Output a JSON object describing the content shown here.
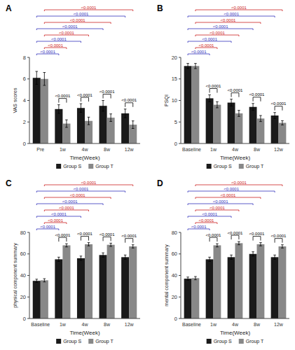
{
  "chart_data": [
    {
      "type": "bar",
      "title": "A",
      "x_label": "Time(Week)",
      "y_label": "VAS scores",
      "categories": [
        "Pre",
        "1w",
        "4w",
        "8w",
        "12w"
      ],
      "series": [
        {
          "name": "Group S",
          "color": "#1a1a1a",
          "values": [
            6.1,
            3.2,
            3.3,
            3.5,
            2.8
          ],
          "errors": [
            0.6,
            0.4,
            0.4,
            0.5,
            0.4
          ]
        },
        {
          "name": "Group T",
          "color": "#888888",
          "values": [
            6.0,
            1.85,
            2.1,
            2.4,
            1.75
          ],
          "errors": [
            0.6,
            0.35,
            0.35,
            0.35,
            0.35
          ]
        }
      ],
      "ylim": [
        0,
        8
      ],
      "yticks": [
        0,
        2,
        4,
        6,
        8
      ],
      "grid": false,
      "legend": "bottom",
      "annotations": [
        {
          "text": "<0.0001",
          "color": "black",
          "series_pair": [
            0,
            1
          ],
          "category_pair": [
            1,
            1
          ]
        },
        {
          "text": "<0.0001",
          "color": "black",
          "series_pair": [
            0,
            1
          ],
          "category_pair": [
            2,
            2
          ]
        },
        {
          "text": "<0.0001",
          "color": "black",
          "series_pair": [
            0,
            1
          ],
          "category_pair": [
            3,
            3
          ]
        },
        {
          "text": "<0.0001",
          "color": "black",
          "series_pair": [
            0,
            1
          ],
          "category_pair": [
            4,
            4
          ]
        },
        {
          "text": "<0.0001",
          "color": "#3333bb",
          "series_pair": [
            0,
            0
          ],
          "category_pair": [
            0,
            1
          ]
        },
        {
          "text": "<0.0001",
          "color": "#cc2222",
          "series_pair": [
            1,
            1
          ],
          "category_pair": [
            0,
            1
          ]
        },
        {
          "text": "<0.0001",
          "color": "#3333bb",
          "series_pair": [
            0,
            0
          ],
          "category_pair": [
            0,
            2
          ]
        },
        {
          "text": "<0.0001",
          "color": "#cc2222",
          "series_pair": [
            1,
            1
          ],
          "category_pair": [
            0,
            2
          ]
        },
        {
          "text": "<0.0001",
          "color": "#3333bb",
          "series_pair": [
            0,
            0
          ],
          "category_pair": [
            0,
            3
          ]
        },
        {
          "text": "<0.0001",
          "color": "#cc2222",
          "series_pair": [
            1,
            1
          ],
          "category_pair": [
            0,
            3
          ]
        },
        {
          "text": "<0.0001",
          "color": "#3333bb",
          "series_pair": [
            0,
            0
          ],
          "category_pair": [
            0,
            4
          ]
        },
        {
          "text": "<0.0001",
          "color": "#cc2222",
          "series_pair": [
            1,
            1
          ],
          "category_pair": [
            0,
            4
          ]
        }
      ]
    },
    {
      "type": "bar",
      "title": "B",
      "x_label": "Time(Week)",
      "y_label": "PSQI",
      "categories": [
        "Baseline",
        "1w",
        "4w",
        "8w",
        "12w"
      ],
      "series": [
        {
          "name": "Group S",
          "color": "#1a1a1a",
          "values": [
            18.0,
            10.5,
            9.5,
            8.5,
            6.5
          ],
          "errors": [
            0.6,
            0.8,
            0.8,
            0.8,
            0.7
          ]
        },
        {
          "name": "Group T",
          "color": "#888888",
          "values": [
            18.0,
            9.0,
            7.0,
            5.8,
            4.8
          ],
          "errors": [
            0.6,
            0.7,
            0.7,
            0.7,
            0.5
          ]
        }
      ],
      "ylim": [
        0,
        20
      ],
      "yticks": [
        0,
        5,
        10,
        15,
        20
      ],
      "grid": false,
      "legend": "bottom",
      "annotations": [
        {
          "text": "<0.0001",
          "color": "black",
          "series_pair": [
            0,
            1
          ],
          "category_pair": [
            1,
            1
          ]
        },
        {
          "text": "<0.0001",
          "color": "black",
          "series_pair": [
            0,
            1
          ],
          "category_pair": [
            2,
            2
          ]
        },
        {
          "text": "<0.0001",
          "color": "black",
          "series_pair": [
            0,
            1
          ],
          "category_pair": [
            3,
            3
          ]
        },
        {
          "text": "<0.0001",
          "color": "black",
          "series_pair": [
            0,
            1
          ],
          "category_pair": [
            4,
            4
          ]
        },
        {
          "text": "<0.0001",
          "color": "#3333bb",
          "series_pair": [
            0,
            0
          ],
          "category_pair": [
            0,
            1
          ]
        },
        {
          "text": "<0.0001",
          "color": "#cc2222",
          "series_pair": [
            1,
            1
          ],
          "category_pair": [
            0,
            1
          ]
        },
        {
          "text": "<0.0001",
          "color": "#3333bb",
          "series_pair": [
            0,
            0
          ],
          "category_pair": [
            0,
            2
          ]
        },
        {
          "text": "<0.0001",
          "color": "#cc2222",
          "series_pair": [
            1,
            1
          ],
          "category_pair": [
            0,
            2
          ]
        },
        {
          "text": "<0.0001",
          "color": "#3333bb",
          "series_pair": [
            0,
            0
          ],
          "category_pair": [
            0,
            3
          ]
        },
        {
          "text": "<0.0001",
          "color": "#cc2222",
          "series_pair": [
            1,
            1
          ],
          "category_pair": [
            0,
            3
          ]
        },
        {
          "text": "<0.0001",
          "color": "#3333bb",
          "series_pair": [
            0,
            0
          ],
          "category_pair": [
            0,
            4
          ]
        },
        {
          "text": "<0.0001",
          "color": "#cc2222",
          "series_pair": [
            1,
            1
          ],
          "category_pair": [
            0,
            4
          ]
        }
      ]
    },
    {
      "type": "bar",
      "title": "C",
      "x_label": "Time(Week)",
      "y_label": "physical component summary",
      "categories": [
        "Baseline",
        "1w",
        "4w",
        "8w",
        "12w"
      ],
      "series": [
        {
          "name": "Group S",
          "color": "#1a1a1a",
          "values": [
            35.0,
            55.0,
            56.0,
            59.0,
            57.0
          ],
          "errors": [
            1.5,
            2.0,
            2.0,
            2.0,
            2.0
          ]
        },
        {
          "name": "Group T",
          "color": "#888888",
          "values": [
            35.5,
            68.0,
            69.0,
            68.5,
            67.0
          ],
          "errors": [
            1.5,
            1.5,
            1.5,
            1.5,
            1.5
          ]
        }
      ],
      "ylim": [
        0,
        80
      ],
      "yticks": [
        0,
        20,
        40,
        60,
        80
      ],
      "grid": false,
      "legend": "bottom",
      "annotations": [
        {
          "text": "<0.0001",
          "color": "black",
          "series_pair": [
            0,
            1
          ],
          "category_pair": [
            1,
            1
          ]
        },
        {
          "text": "<0.0001",
          "color": "black",
          "series_pair": [
            0,
            1
          ],
          "category_pair": [
            2,
            2
          ]
        },
        {
          "text": "<0.0001",
          "color": "black",
          "series_pair": [
            0,
            1
          ],
          "category_pair": [
            3,
            3
          ]
        },
        {
          "text": "<0.0001",
          "color": "black",
          "series_pair": [
            0,
            1
          ],
          "category_pair": [
            4,
            4
          ]
        },
        {
          "text": "<0.0001",
          "color": "#3333bb",
          "series_pair": [
            0,
            0
          ],
          "category_pair": [
            0,
            1
          ]
        },
        {
          "text": "<0.0001",
          "color": "#cc2222",
          "series_pair": [
            1,
            1
          ],
          "category_pair": [
            0,
            1
          ]
        },
        {
          "text": "<0.0001",
          "color": "#3333bb",
          "series_pair": [
            0,
            0
          ],
          "category_pair": [
            0,
            2
          ]
        },
        {
          "text": "<0.0001",
          "color": "#cc2222",
          "series_pair": [
            1,
            1
          ],
          "category_pair": [
            0,
            2
          ]
        },
        {
          "text": "<0.0001",
          "color": "#3333bb",
          "series_pair": [
            0,
            0
          ],
          "category_pair": [
            0,
            3
          ]
        },
        {
          "text": "<0.0001",
          "color": "#cc2222",
          "series_pair": [
            1,
            1
          ],
          "category_pair": [
            0,
            3
          ]
        },
        {
          "text": "<0.0001",
          "color": "#3333bb",
          "series_pair": [
            0,
            0
          ],
          "category_pair": [
            0,
            4
          ]
        },
        {
          "text": "<0.0001",
          "color": "#cc2222",
          "series_pair": [
            1,
            1
          ],
          "category_pair": [
            0,
            4
          ]
        }
      ]
    },
    {
      "type": "bar",
      "title": "D",
      "x_label": "Time(Week)",
      "y_label": "mental component summary",
      "categories": [
        "Baseline",
        "1w",
        "4w",
        "8w",
        "12w"
      ],
      "series": [
        {
          "name": "Group S",
          "color": "#1a1a1a",
          "values": [
            37.0,
            55.0,
            57.0,
            60.0,
            57.0
          ],
          "errors": [
            1.5,
            2.0,
            2.0,
            2.0,
            2.0
          ]
        },
        {
          "name": "Group T",
          "color": "#888888",
          "values": [
            37.5,
            68.0,
            70.0,
            69.0,
            67.0
          ],
          "errors": [
            1.5,
            1.5,
            1.5,
            1.5,
            1.5
          ]
        }
      ],
      "ylim": [
        0,
        80
      ],
      "yticks": [
        0,
        20,
        40,
        60,
        80
      ],
      "grid": false,
      "legend": "bottom",
      "annotations": [
        {
          "text": "<0.0001",
          "color": "black",
          "series_pair": [
            0,
            1
          ],
          "category_pair": [
            1,
            1
          ]
        },
        {
          "text": "<0.0001",
          "color": "black",
          "series_pair": [
            0,
            1
          ],
          "category_pair": [
            2,
            2
          ]
        },
        {
          "text": "<0.0001",
          "color": "black",
          "series_pair": [
            0,
            1
          ],
          "category_pair": [
            3,
            3
          ]
        },
        {
          "text": "<0.0001",
          "color": "black",
          "series_pair": [
            0,
            1
          ],
          "category_pair": [
            4,
            4
          ]
        },
        {
          "text": "<0.0001",
          "color": "#3333bb",
          "series_pair": [
            0,
            0
          ],
          "category_pair": [
            0,
            1
          ]
        },
        {
          "text": "<0.0001",
          "color": "#cc2222",
          "series_pair": [
            1,
            1
          ],
          "category_pair": [
            0,
            1
          ]
        },
        {
          "text": "<0.0001",
          "color": "#3333bb",
          "series_pair": [
            0,
            0
          ],
          "category_pair": [
            0,
            2
          ]
        },
        {
          "text": "<0.0001",
          "color": "#cc2222",
          "series_pair": [
            1,
            1
          ],
          "category_pair": [
            0,
            2
          ]
        },
        {
          "text": "<0.0001",
          "color": "#3333bb",
          "series_pair": [
            0,
            0
          ],
          "category_pair": [
            0,
            3
          ]
        },
        {
          "text": "<0.0001",
          "color": "#cc2222",
          "series_pair": [
            1,
            1
          ],
          "category_pair": [
            0,
            3
          ]
        },
        {
          "text": "<0.0001",
          "color": "#3333bb",
          "series_pair": [
            0,
            0
          ],
          "category_pair": [
            0,
            4
          ]
        },
        {
          "text": "<0.0001",
          "color": "#cc2222",
          "series_pair": [
            1,
            1
          ],
          "category_pair": [
            0,
            4
          ]
        }
      ]
    }
  ]
}
